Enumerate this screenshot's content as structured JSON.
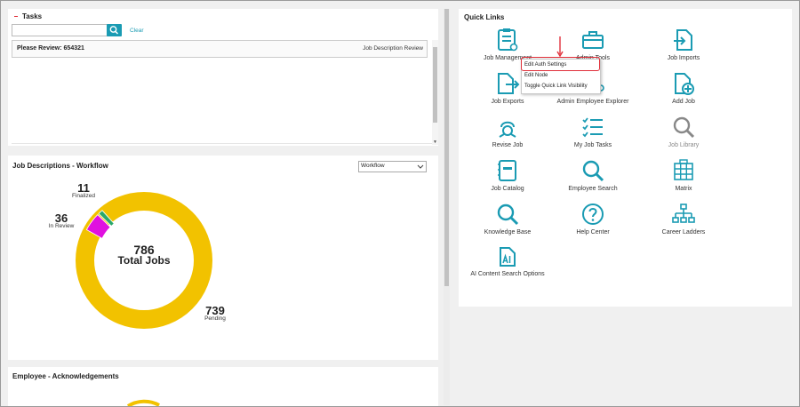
{
  "tasks": {
    "title": "Tasks",
    "search_value": "",
    "clear_label": "Clear",
    "items": [
      {
        "name": "Please Review: 654321",
        "type": "Job Description Review"
      }
    ]
  },
  "workflow": {
    "title": "Job Descriptions - Workflow",
    "select_value": "Workflow",
    "total_value": "786",
    "total_label": "Total Jobs",
    "stats": [
      {
        "value": "11",
        "label": "Finalized"
      },
      {
        "value": "36",
        "label": "In Review"
      },
      {
        "value": "739",
        "label": "Pending"
      }
    ],
    "colors": {
      "pending": "#f2c200",
      "in_review": "#e010e0",
      "finalized": "#2aa86a"
    }
  },
  "ack": {
    "title": "Employee - Acknowledgements"
  },
  "quick_links": {
    "title": "Quick Links",
    "items": [
      {
        "label": "Job Management",
        "icon": "clipboard-gear-icon"
      },
      {
        "label": "Admin Tools",
        "icon": "toolbox-icon"
      },
      {
        "label": "Job Imports",
        "icon": "file-import-icon"
      },
      {
        "label": "Job Exports",
        "icon": "file-export-icon"
      },
      {
        "label": "Admin Employee Explorer",
        "icon": "employee-explorer-icon"
      },
      {
        "label": "Add Job",
        "icon": "file-add-icon"
      },
      {
        "label": "Revise Job",
        "icon": "revise-icon"
      },
      {
        "label": "My Job Tasks",
        "icon": "task-list-icon"
      },
      {
        "label": "Job Library",
        "icon": "search-gray-icon"
      },
      {
        "label": "Job Catalog",
        "icon": "catalog-icon"
      },
      {
        "label": "Employee Search",
        "icon": "search-icon"
      },
      {
        "label": "Matrix",
        "icon": "matrix-icon"
      },
      {
        "label": "Knowledge Base",
        "icon": "search-icon"
      },
      {
        "label": "Help Center",
        "icon": "help-icon"
      },
      {
        "label": "Career Ladders",
        "icon": "org-chart-icon"
      },
      {
        "label": "AI Content Search Options",
        "icon": "ai-file-icon"
      }
    ]
  },
  "context_menu": {
    "items": [
      "Edit Auth Settings",
      "Edit Node",
      "Toggle Quick Link Visibility"
    ]
  },
  "accent_color": "#1a9bb3",
  "highlight_color": "#e0303a"
}
